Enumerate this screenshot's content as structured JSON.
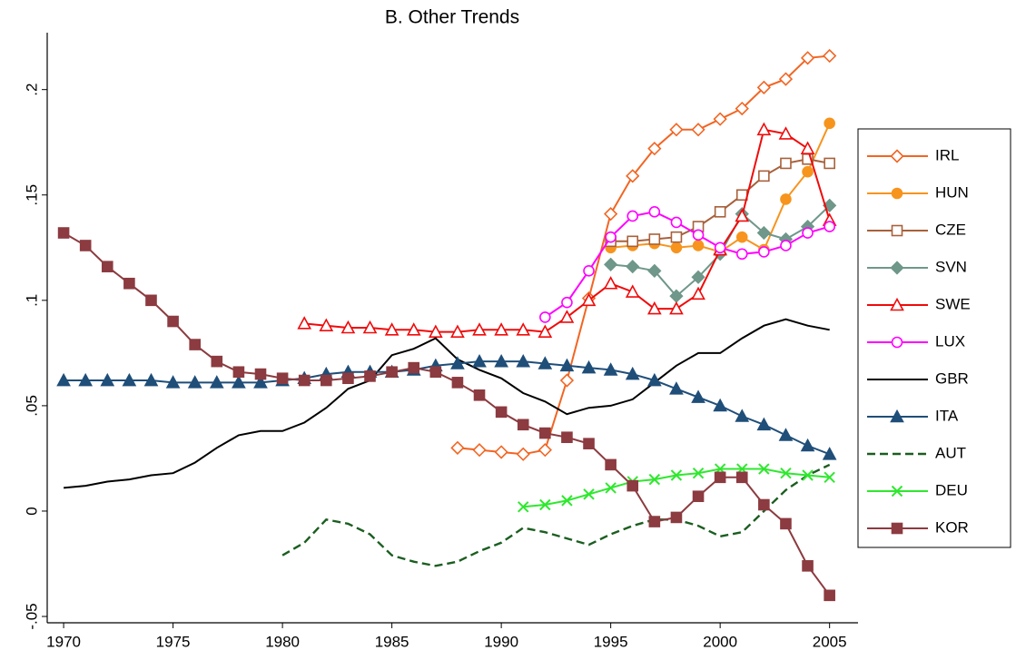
{
  "chart_data": {
    "type": "line",
    "title": "B. Other Trends",
    "x": [
      1970,
      1971,
      1972,
      1973,
      1974,
      1975,
      1976,
      1977,
      1978,
      1979,
      1980,
      1981,
      1982,
      1983,
      1984,
      1985,
      1986,
      1987,
      1988,
      1989,
      1990,
      1991,
      1992,
      1993,
      1994,
      1995,
      1996,
      1997,
      1998,
      1999,
      2000,
      2001,
      2002,
      2003,
      2004,
      2005
    ],
    "xlim": [
      1969.25,
      2006.3
    ],
    "xticks": [
      1970,
      1975,
      1980,
      1985,
      1990,
      1995,
      2000,
      2005
    ],
    "ylim": [
      -0.053,
      0.227
    ],
    "yticks": [
      {
        "value": -0.05,
        "label": "-.05"
      },
      0,
      {
        "value": 0.05,
        "label": ".05"
      },
      {
        "value": 0.1,
        "label": ".1"
      },
      {
        "value": 0.15,
        "label": ".15"
      },
      {
        "value": 0.2,
        "label": ".2"
      }
    ],
    "legend": "right",
    "series": [
      {
        "name": "IRL",
        "color": "#f26522",
        "marker": "diamond-open",
        "values": [
          null,
          null,
          null,
          null,
          null,
          null,
          null,
          null,
          null,
          null,
          null,
          null,
          null,
          null,
          null,
          null,
          null,
          null,
          0.03,
          0.029,
          0.028,
          0.027,
          0.029,
          0.062,
          0.101,
          0.141,
          0.159,
          0.172,
          0.181,
          0.181,
          0.186,
          0.191,
          0.201,
          0.205,
          0.215,
          0.216
        ]
      },
      {
        "name": "HUN",
        "color": "#f7941d",
        "marker": "circle",
        "values": [
          null,
          null,
          null,
          null,
          null,
          null,
          null,
          null,
          null,
          null,
          null,
          null,
          null,
          null,
          null,
          null,
          null,
          null,
          null,
          null,
          null,
          null,
          null,
          null,
          null,
          0.125,
          0.126,
          0.127,
          0.125,
          0.126,
          0.123,
          0.13,
          0.124,
          0.148,
          0.161,
          0.184
        ]
      },
      {
        "name": "CZE",
        "color": "#a8603a",
        "marker": "square-open",
        "values": [
          null,
          null,
          null,
          null,
          null,
          null,
          null,
          null,
          null,
          null,
          null,
          null,
          null,
          null,
          null,
          null,
          null,
          null,
          null,
          null,
          null,
          null,
          null,
          null,
          null,
          0.128,
          0.128,
          0.129,
          0.13,
          0.135,
          0.142,
          0.15,
          0.159,
          0.165,
          0.167,
          0.165
        ]
      },
      {
        "name": "SVN",
        "color": "#6f978a",
        "marker": "diamond",
        "values": [
          null,
          null,
          null,
          null,
          null,
          null,
          null,
          null,
          null,
          null,
          null,
          null,
          null,
          null,
          null,
          null,
          null,
          null,
          null,
          null,
          null,
          null,
          null,
          null,
          null,
          0.117,
          0.116,
          0.114,
          0.102,
          0.111,
          0.122,
          0.141,
          0.132,
          0.129,
          0.135,
          0.145
        ]
      },
      {
        "name": "SWE",
        "color": "#f00a0a",
        "marker": "triangle-open",
        "values": [
          null,
          null,
          null,
          null,
          null,
          null,
          null,
          null,
          null,
          null,
          null,
          0.089,
          0.088,
          0.087,
          0.087,
          0.086,
          0.086,
          0.085,
          0.085,
          0.086,
          0.086,
          0.086,
          0.085,
          0.092,
          0.1,
          0.108,
          0.104,
          0.096,
          0.096,
          0.103,
          0.124,
          0.14,
          0.181,
          0.179,
          0.172,
          0.138
        ]
      },
      {
        "name": "LUX",
        "color": "#ff00ff",
        "marker": "circle-open",
        "values": [
          null,
          null,
          null,
          null,
          null,
          null,
          null,
          null,
          null,
          null,
          null,
          null,
          null,
          null,
          null,
          null,
          null,
          null,
          null,
          null,
          null,
          null,
          0.092,
          0.099,
          0.114,
          0.13,
          0.14,
          0.142,
          0.137,
          0.131,
          0.125,
          0.122,
          0.123,
          0.126,
          0.132,
          0.135
        ]
      },
      {
        "name": "GBR",
        "color": "#000000",
        "marker": "none",
        "values": [
          0.011,
          0.012,
          0.014,
          0.015,
          0.017,
          0.018,
          0.023,
          0.03,
          0.036,
          0.038,
          0.038,
          0.042,
          0.049,
          0.058,
          0.062,
          0.074,
          0.077,
          0.082,
          0.072,
          0.067,
          0.063,
          0.056,
          0.052,
          0.046,
          0.049,
          0.05,
          0.053,
          0.061,
          0.069,
          0.075,
          0.075,
          0.082,
          0.088,
          0.091,
          0.088,
          0.086
        ]
      },
      {
        "name": "ITA",
        "color": "#1f4e79",
        "marker": "triangle",
        "values": [
          0.062,
          0.062,
          0.062,
          0.062,
          0.062,
          0.061,
          0.061,
          0.061,
          0.061,
          0.061,
          0.062,
          0.063,
          0.065,
          0.066,
          0.066,
          0.066,
          0.067,
          0.069,
          0.07,
          0.071,
          0.071,
          0.071,
          0.07,
          0.069,
          0.068,
          0.067,
          0.065,
          0.062,
          0.058,
          0.054,
          0.05,
          0.045,
          0.041,
          0.036,
          0.031,
          0.027
        ]
      },
      {
        "name": "AUT",
        "color": "#1b5e20",
        "marker": "none",
        "dash": true,
        "values": [
          null,
          null,
          null,
          null,
          null,
          null,
          null,
          null,
          null,
          null,
          -0.021,
          -0.015,
          -0.004,
          -0.006,
          -0.011,
          -0.021,
          -0.024,
          -0.026,
          -0.024,
          -0.019,
          -0.015,
          -0.008,
          -0.01,
          -0.013,
          -0.016,
          -0.011,
          -0.007,
          -0.004,
          -0.004,
          -0.007,
          -0.012,
          -0.01,
          0.0,
          0.01,
          0.017,
          0.022
        ]
      },
      {
        "name": "DEU",
        "color": "#2ee82e",
        "marker": "x",
        "values": [
          null,
          null,
          null,
          null,
          null,
          null,
          null,
          null,
          null,
          null,
          null,
          null,
          null,
          null,
          null,
          null,
          null,
          null,
          null,
          null,
          null,
          0.002,
          0.003,
          0.005,
          0.008,
          0.011,
          0.014,
          0.015,
          0.017,
          0.018,
          0.02,
          0.02,
          0.02,
          0.018,
          0.017,
          0.016
        ]
      },
      {
        "name": "KOR",
        "color": "#8c3b40",
        "marker": "square",
        "values": [
          0.132,
          0.126,
          0.116,
          0.108,
          0.1,
          0.09,
          0.079,
          0.071,
          0.066,
          0.065,
          0.063,
          0.062,
          0.062,
          0.063,
          0.064,
          0.066,
          0.068,
          0.066,
          0.061,
          0.055,
          0.047,
          0.041,
          0.037,
          0.035,
          0.032,
          0.022,
          0.012,
          -0.005,
          -0.003,
          0.007,
          0.016,
          0.016,
          0.003,
          -0.006,
          -0.026,
          -0.04
        ]
      }
    ]
  }
}
